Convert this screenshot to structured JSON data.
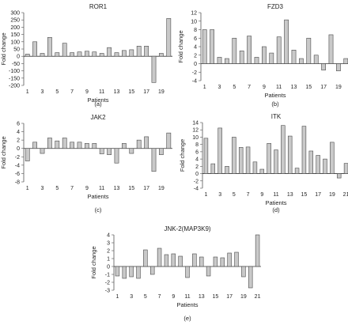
{
  "chart_data": [
    {
      "type": "bar",
      "title": "ROR1",
      "ylabel": "Fold change",
      "xlabel": "Patients",
      "caption": "(a)",
      "ylim": [
        -200,
        300
      ],
      "yticks": [
        -200,
        -150,
        -100,
        -50,
        0,
        50,
        100,
        150,
        200,
        250,
        300
      ],
      "x_tick_labels": [
        "1",
        "3",
        "5",
        "7",
        "9",
        "11",
        "13",
        "15",
        "17",
        "19"
      ],
      "categories": [
        "1",
        "2",
        "3",
        "4",
        "5",
        "6",
        "7",
        "8",
        "9",
        "10",
        "11",
        "12",
        "13",
        "14",
        "15",
        "16",
        "17",
        "18",
        "19",
        "20"
      ],
      "values": [
        15,
        100,
        20,
        130,
        25,
        90,
        25,
        30,
        35,
        30,
        20,
        60,
        25,
        40,
        45,
        70,
        70,
        -180,
        20,
        260
      ]
    },
    {
      "type": "bar",
      "title": "FZD3",
      "ylabel": "Fold change",
      "xlabel": "Patients",
      "caption": "(b)",
      "ylim": [
        -4,
        12
      ],
      "yticks": [
        -4,
        -2,
        0,
        2,
        4,
        6,
        8,
        10,
        12
      ],
      "x_tick_labels": [
        "1",
        "3",
        "5",
        "7",
        "9",
        "11",
        "13",
        "15",
        "17",
        "19"
      ],
      "categories": [
        "1",
        "2",
        "3",
        "4",
        "5",
        "6",
        "7",
        "8",
        "9",
        "10",
        "11",
        "12",
        "13",
        "14",
        "15",
        "16",
        "17",
        "18",
        "19",
        "20"
      ],
      "values": [
        8,
        8,
        1.5,
        1.2,
        6,
        3,
        6.5,
        1.5,
        4,
        2.5,
        6.3,
        10.3,
        3.2,
        1.2,
        6,
        2,
        -1.5,
        6.8,
        -1.7,
        1.2
      ]
    },
    {
      "type": "bar",
      "title": "JAK2",
      "ylabel": "Fold change",
      "xlabel": "Patients",
      "caption": "(c)",
      "ylim": [
        -8,
        6
      ],
      "yticks": [
        -8,
        -6,
        -4,
        -2,
        0,
        2,
        4,
        6
      ],
      "x_tick_labels": [
        "1",
        "3",
        "5",
        "7",
        "9",
        "11",
        "13",
        "15",
        "17",
        "19"
      ],
      "categories": [
        "1",
        "2",
        "3",
        "4",
        "5",
        "6",
        "7",
        "8",
        "9",
        "10",
        "11",
        "12",
        "13",
        "14",
        "15",
        "16",
        "17",
        "18",
        "19",
        "20"
      ],
      "values": [
        -3,
        1.5,
        -1.2,
        2.5,
        1.8,
        2.5,
        1.5,
        1.5,
        1.2,
        1.2,
        -1.3,
        -1.5,
        -3.5,
        1.2,
        -1.2,
        2,
        2.8,
        -5.5,
        -1.5,
        3.7
      ]
    },
    {
      "type": "bar",
      "title": "ITK",
      "ylabel": "Fold change",
      "xlabel": "Patients",
      "caption": "(d)",
      "ylim": [
        -4,
        14
      ],
      "yticks": [
        -4,
        -2,
        0,
        2,
        4,
        6,
        8,
        10,
        12,
        14
      ],
      "x_tick_labels": [
        "1",
        "3",
        "5",
        "7",
        "9",
        "11",
        "13",
        "15",
        "17",
        "19",
        "21"
      ],
      "categories": [
        "1",
        "2",
        "3",
        "4",
        "5",
        "6",
        "7",
        "8",
        "9",
        "10",
        "11",
        "12",
        "13",
        "14",
        "15",
        "16",
        "17",
        "18",
        "19",
        "20",
        "21"
      ],
      "values": [
        9.7,
        2.7,
        12.5,
        2,
        10,
        7.2,
        7.3,
        3.2,
        1.2,
        8.3,
        6.5,
        13.2,
        10.3,
        1.5,
        13,
        6.2,
        5,
        4,
        8.6,
        -1.2,
        2.8
      ]
    },
    {
      "type": "bar",
      "title": "JNK-2(MAP3K9)",
      "ylabel": "Fold change",
      "xlabel": "Patients",
      "caption": "(e)",
      "ylim": [
        -3,
        4
      ],
      "yticks": [
        -3,
        -2,
        -1,
        0,
        1,
        2,
        3,
        4
      ],
      "x_tick_labels": [
        "1",
        "3",
        "5",
        "7",
        "9",
        "11",
        "13",
        "15",
        "17",
        "19",
        "21"
      ],
      "categories": [
        "1",
        "2",
        "3",
        "4",
        "5",
        "6",
        "7",
        "8",
        "9",
        "10",
        "11",
        "12",
        "13",
        "14",
        "15",
        "16",
        "17",
        "18",
        "19",
        "20",
        "21"
      ],
      "values": [
        -1.2,
        -1.5,
        -1.3,
        -1.5,
        2.1,
        -1,
        2.3,
        1.5,
        1.6,
        1.3,
        -1.4,
        1.6,
        1.2,
        -1.2,
        1.2,
        1.1,
        1.7,
        1.8,
        -1.3,
        -2.7,
        4
      ]
    }
  ]
}
